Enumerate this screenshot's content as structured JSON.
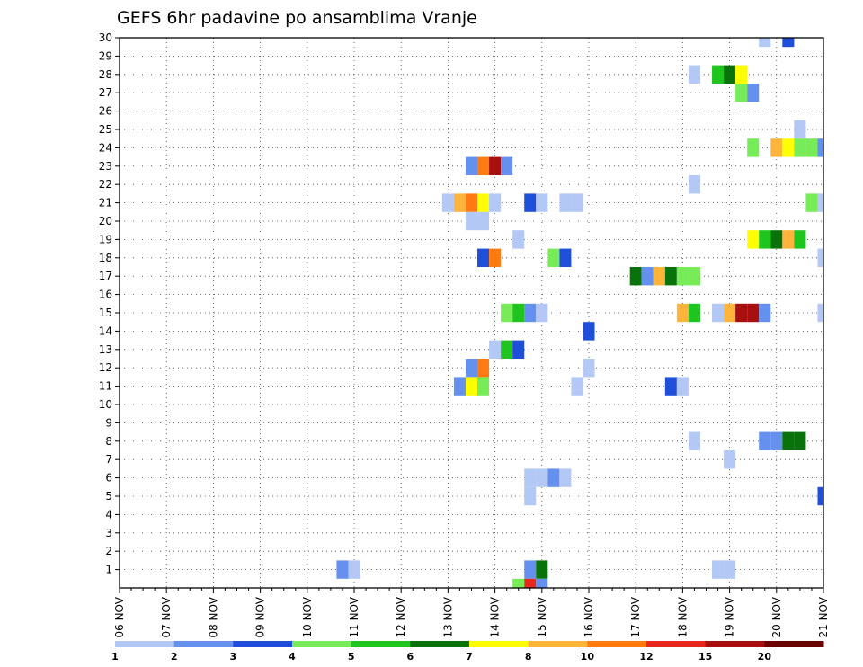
{
  "chart_data": {
    "type": "heatmap",
    "title": "GEFS 6hr padavine po ansamblima Vranje",
    "x_labels": [
      "06 NOV",
      "07 NOV",
      "08 NOV",
      "09 NOV",
      "10 NOV",
      "11 NOV",
      "12 NOV",
      "13 NOV",
      "14 NOV",
      "15 NOV",
      "16 NOV",
      "17 NOV",
      "18 NOV",
      "19 NOV",
      "20 NOV",
      "21 NOV"
    ],
    "y_labels": [
      "1",
      "2",
      "3",
      "4",
      "5",
      "6",
      "7",
      "8",
      "9",
      "10",
      "11",
      "12",
      "13",
      "14",
      "15",
      "16",
      "17",
      "18",
      "19",
      "20",
      "21",
      "22",
      "23",
      "24",
      "25",
      "26",
      "27",
      "28",
      "29",
      "30"
    ],
    "xlim_days": [
      6,
      21
    ],
    "ylim": [
      0,
      30
    ],
    "grid": true,
    "colorbar": {
      "labels": [
        "1",
        "2",
        "3",
        "4",
        "5",
        "6",
        "7",
        "8",
        "10",
        "12",
        "15",
        "20"
      ],
      "colors": [
        "#b4c8f5",
        "#6690ee",
        "#1f4fd9",
        "#78eb58",
        "#1fc41f",
        "#0a720a",
        "#ffff00",
        "#ffb43c",
        "#ff7a10",
        "#e8281e",
        "#a81010",
        "#6a0000"
      ]
    },
    "points": [
      {
        "x": "10.75",
        "y": 1,
        "c": 2
      },
      {
        "x": "11.0",
        "y": 1,
        "c": 1
      },
      {
        "x": "13.5",
        "y": 23,
        "c": 2
      },
      {
        "x": "13.75",
        "y": 23,
        "c": 9
      },
      {
        "x": "14.0",
        "y": 23,
        "c": 11
      },
      {
        "x": "14.25",
        "y": 23,
        "c": 2
      },
      {
        "x": "13.0",
        "y": 21,
        "c": 1
      },
      {
        "x": "13.25",
        "y": 21,
        "c": 8
      },
      {
        "x": "13.5",
        "y": 21,
        "c": 9
      },
      {
        "x": "13.75",
        "y": 21,
        "c": 7
      },
      {
        "x": "14.0",
        "y": 21,
        "c": 1
      },
      {
        "x": "14.75",
        "y": 21,
        "c": 3
      },
      {
        "x": "15.0",
        "y": 21,
        "c": 1
      },
      {
        "x": "15.5",
        "y": 21,
        "c": 1
      },
      {
        "x": "15.75",
        "y": 21,
        "c": 1
      },
      {
        "x": "13.5",
        "y": 20,
        "c": 1
      },
      {
        "x": "13.75",
        "y": 20,
        "c": 1
      },
      {
        "x": "14.5",
        "y": 19,
        "c": 1
      },
      {
        "x": "13.75",
        "y": 18,
        "c": 3
      },
      {
        "x": "14.0",
        "y": 18,
        "c": 9
      },
      {
        "x": "15.25",
        "y": 18,
        "c": 4
      },
      {
        "x": "15.5",
        "y": 18,
        "c": 3
      },
      {
        "x": "14.25",
        "y": 15,
        "c": 4
      },
      {
        "x": "14.5",
        "y": 15,
        "c": 5
      },
      {
        "x": "14.75",
        "y": 15,
        "c": 2
      },
      {
        "x": "15.0",
        "y": 15,
        "c": 1
      },
      {
        "x": "16.0",
        "y": 14,
        "c": 3
      },
      {
        "x": "14.0",
        "y": 13,
        "c": 1
      },
      {
        "x": "14.25",
        "y": 13,
        "c": 5
      },
      {
        "x": "14.5",
        "y": 13,
        "c": 3
      },
      {
        "x": "13.5",
        "y": 12,
        "c": 2
      },
      {
        "x": "13.75",
        "y": 12,
        "c": 9
      },
      {
        "x": "16.0",
        "y": 12,
        "c": 1
      },
      {
        "x": "13.25",
        "y": 11,
        "c": 2
      },
      {
        "x": "13.5",
        "y": 11,
        "c": 7
      },
      {
        "x": "13.75",
        "y": 11,
        "c": 4
      },
      {
        "x": "15.75",
        "y": 11,
        "c": 1
      },
      {
        "x": "14.75",
        "y": 6,
        "c": 1
      },
      {
        "x": "15.0",
        "y": 6,
        "c": 1
      },
      {
        "x": "15.25",
        "y": 6,
        "c": 2
      },
      {
        "x": "15.5",
        "y": 6,
        "c": 1
      },
      {
        "x": "14.75",
        "y": 5,
        "c": 1
      },
      {
        "x": "14.75",
        "y": 1,
        "c": 2
      },
      {
        "x": "15.0",
        "y": 1,
        "c": 6
      },
      {
        "x": "14.5",
        "y": 0,
        "c": 4
      },
      {
        "x": "14.75",
        "y": 0,
        "c": 10
      },
      {
        "x": "15.0",
        "y": 0,
        "c": 2
      },
      {
        "x": "17.0",
        "y": 17,
        "c": 6
      },
      {
        "x": "17.25",
        "y": 17,
        "c": 2
      },
      {
        "x": "17.5",
        "y": 17,
        "c": 8
      },
      {
        "x": "17.75",
        "y": 17,
        "c": 6
      },
      {
        "x": "18.0",
        "y": 17,
        "c": 4
      },
      {
        "x": "18.25",
        "y": 17,
        "c": 4
      },
      {
        "x": "17.75",
        "y": 11,
        "c": 3
      },
      {
        "x": "18.0",
        "y": 11,
        "c": 1
      },
      {
        "x": "18.25",
        "y": 28,
        "c": 1
      },
      {
        "x": "18.25",
        "y": 22,
        "c": 1
      },
      {
        "x": "18.0",
        "y": 15,
        "c": 8
      },
      {
        "x": "18.25",
        "y": 15,
        "c": 5
      },
      {
        "x": "18.75",
        "y": 15,
        "c": 1
      },
      {
        "x": "19.0",
        "y": 15,
        "c": 8
      },
      {
        "x": "19.25",
        "y": 15,
        "c": 11
      },
      {
        "x": "19.5",
        "y": 15,
        "c": 11
      },
      {
        "x": "19.75",
        "y": 15,
        "c": 2
      },
      {
        "x": "18.25",
        "y": 8,
        "c": 1
      },
      {
        "x": "19.0",
        "y": 7,
        "c": 1
      },
      {
        "x": "19.75",
        "y": 8,
        "c": 2
      },
      {
        "x": "20.0",
        "y": 8,
        "c": 2
      },
      {
        "x": "20.25",
        "y": 8,
        "c": 6
      },
      {
        "x": "20.5",
        "y": 8,
        "c": 6
      },
      {
        "x": "18.75",
        "y": 1,
        "c": 1
      },
      {
        "x": "19.0",
        "y": 1,
        "c": 1
      },
      {
        "x": "21.0",
        "y": 5,
        "c": 3
      },
      {
        "x": "21.0",
        "y": 15,
        "c": 1
      },
      {
        "x": "21.0",
        "y": 18,
        "c": 1
      },
      {
        "x": "20.75",
        "y": 21,
        "c": 4
      },
      {
        "x": "21.0",
        "y": 21,
        "c": 1
      },
      {
        "x": "19.75",
        "y": 30,
        "c": 1
      },
      {
        "x": "20.25",
        "y": 30,
        "c": 3
      },
      {
        "x": "18.75",
        "y": 28,
        "c": 5
      },
      {
        "x": "19.0",
        "y": 28,
        "c": 6
      },
      {
        "x": "19.25",
        "y": 28,
        "c": 7
      },
      {
        "x": "19.25",
        "y": 27,
        "c": 4
      },
      {
        "x": "19.5",
        "y": 27,
        "c": 2
      },
      {
        "x": "20.5",
        "y": 25,
        "c": 1
      },
      {
        "x": "19.5",
        "y": 24,
        "c": 4
      },
      {
        "x": "20.0",
        "y": 24,
        "c": 8
      },
      {
        "x": "20.25",
        "y": 24,
        "c": 7
      },
      {
        "x": "20.5",
        "y": 24,
        "c": 4
      },
      {
        "x": "20.75",
        "y": 24,
        "c": 4
      },
      {
        "x": "21.0",
        "y": 24,
        "c": 2
      },
      {
        "x": "19.5",
        "y": 19,
        "c": 7
      },
      {
        "x": "19.75",
        "y": 19,
        "c": 5
      },
      {
        "x": "20.0",
        "y": 19,
        "c": 6
      },
      {
        "x": "20.25",
        "y": 19,
        "c": 8
      },
      {
        "x": "20.5",
        "y": 19,
        "c": 5
      }
    ]
  }
}
